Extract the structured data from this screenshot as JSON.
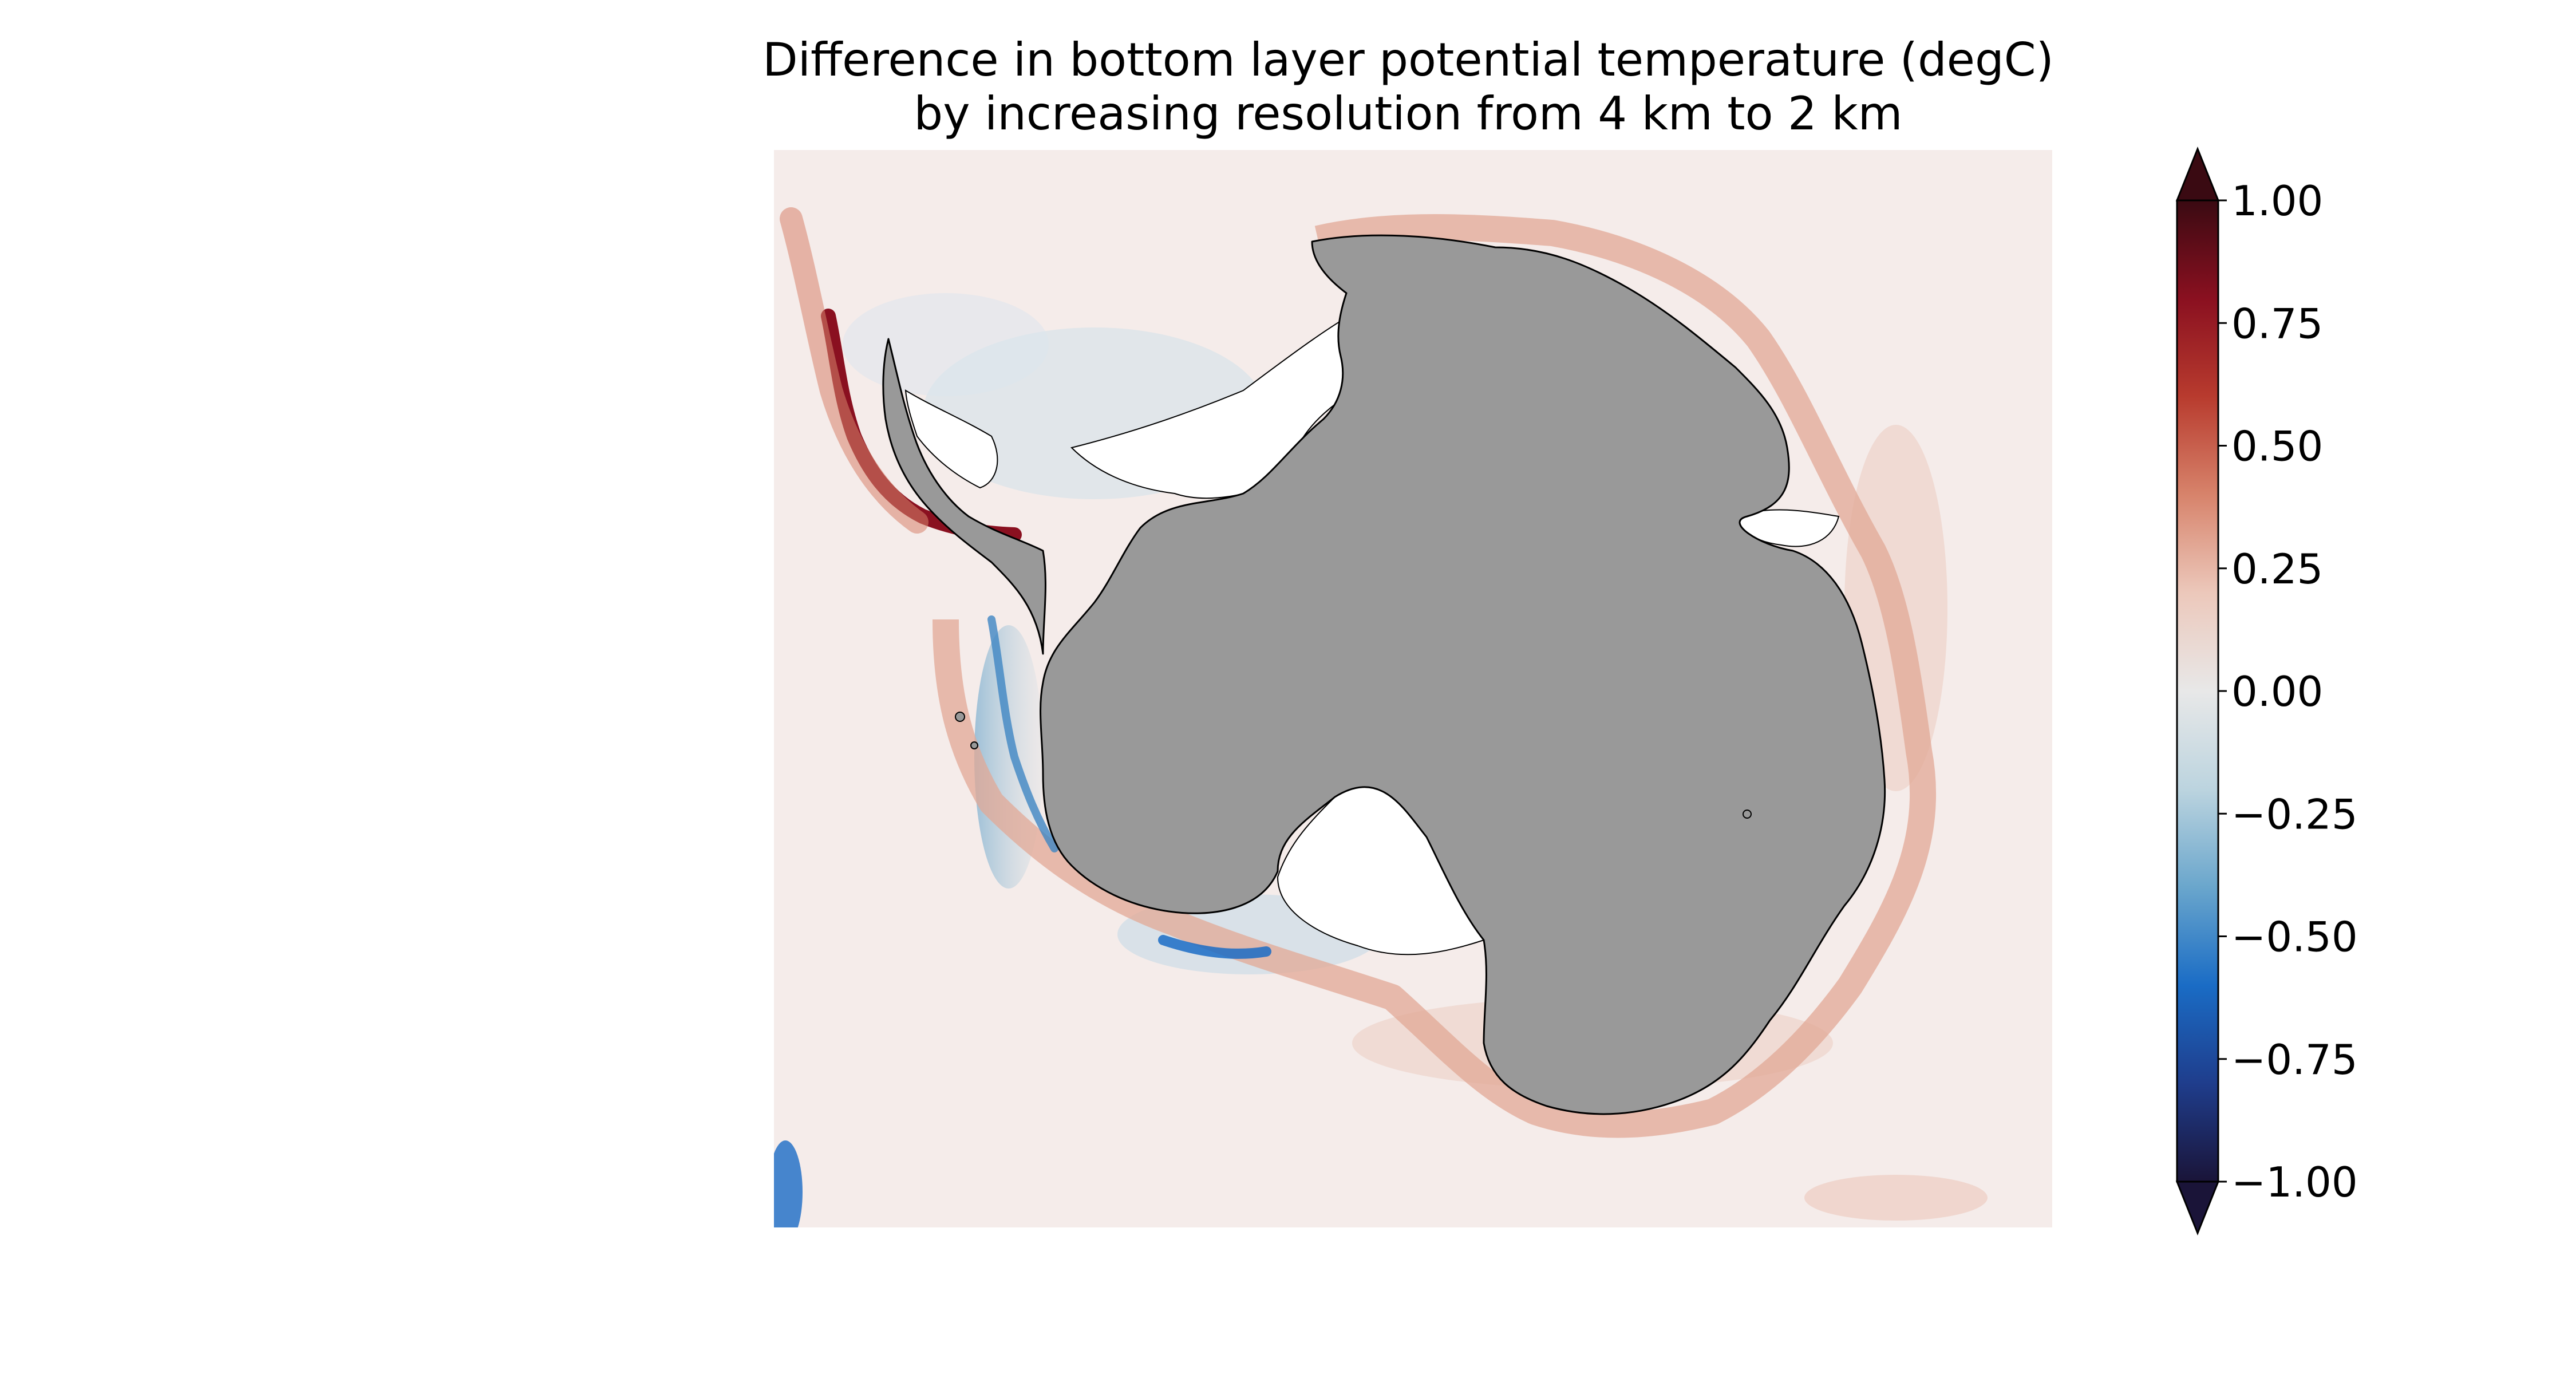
{
  "figure": {
    "title_line1": "Difference in bottom layer potential temperature (degC)",
    "title_line2": "by increasing resolution from 4 km to 2 km"
  },
  "map": {
    "region": "Antarctica",
    "land_color": "#999999",
    "ice_shelf_color": "#ffffff",
    "ocean_background_color": "#f5ecea",
    "coastline_color": "#000000"
  },
  "colorbar": {
    "min": -1.0,
    "max": 1.0,
    "extend": "both",
    "colormap": [
      "#1a1438",
      "#1f3d8c",
      "#1a6cc5",
      "#6aa6cc",
      "#bcd4df",
      "#e8e8e8",
      "#ecc8bb",
      "#d7836b",
      "#b83b2e",
      "#8a1020",
      "#3a0a12"
    ],
    "ticks": [
      "1.00",
      "0.75",
      "0.50",
      "0.25",
      "0.00",
      "−0.25",
      "−0.50",
      "−0.75",
      "−1.00"
    ]
  }
}
